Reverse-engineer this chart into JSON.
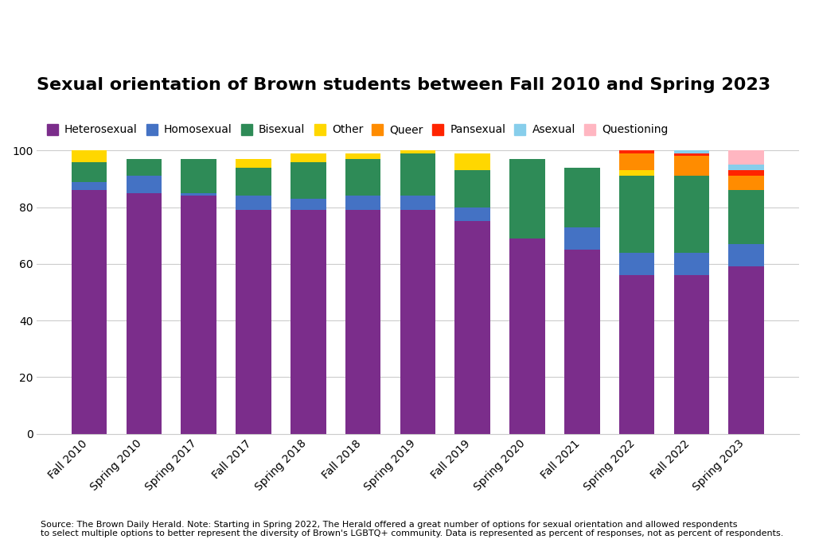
{
  "title": "Sexual orientation of Brown students between Fall 2010 and Spring 2023",
  "categories": [
    "Fall 2010",
    "Spring 2010",
    "Spring 2017",
    "Fall 2017",
    "Spring 2018",
    "Fall 2018",
    "Spring 2019",
    "Fall 2019",
    "Spring 2020",
    "Fall 2021",
    "Spring 2022",
    "Fall 2022",
    "Spring 2023"
  ],
  "series": {
    "Heterosexual": [
      86,
      85,
      84,
      79,
      79,
      79,
      79,
      75,
      69,
      65,
      56,
      56,
      59
    ],
    "Homosexual": [
      3,
      6,
      1,
      5,
      4,
      5,
      5,
      5,
      0,
      8,
      8,
      8,
      8
    ],
    "Bisexual": [
      7,
      6,
      12,
      10,
      13,
      13,
      15,
      13,
      28,
      21,
      27,
      27,
      19
    ],
    "Other": [
      4,
      0,
      0,
      3,
      3,
      2,
      1,
      6,
      0,
      0,
      2,
      0,
      0
    ],
    "Queer": [
      0,
      0,
      0,
      0,
      0,
      0,
      0,
      0,
      0,
      0,
      6,
      7,
      5
    ],
    "Pansexual": [
      0,
      0,
      0,
      0,
      0,
      0,
      0,
      0,
      0,
      0,
      2,
      1,
      2
    ],
    "Asexual": [
      0,
      0,
      0,
      0,
      0,
      0,
      0,
      0,
      0,
      0,
      1,
      1,
      2
    ],
    "Questioning": [
      0,
      0,
      0,
      0,
      0,
      0,
      0,
      0,
      0,
      0,
      5,
      5,
      5
    ]
  },
  "colors": {
    "Heterosexual": "#7B2D8B",
    "Homosexual": "#4472C4",
    "Bisexual": "#2E8B57",
    "Other": "#FFD700",
    "Queer": "#FF8C00",
    "Pansexual": "#FF2400",
    "Asexual": "#87CEEB",
    "Questioning": "#FFB6C1"
  },
  "ylabel": "",
  "ylim": [
    0,
    100
  ],
  "footnote": "Source: The Brown Daily Herald. Note: Starting in Spring 2022, The Herald offered a great number of options for sexual orientation and allowed respondents\nto select multiple options to better represent the diversity of Brown's LGBTQ+ community. Data is represented as percent of responses, not as percent of respondents.",
  "background_color": "#FFFFFF"
}
